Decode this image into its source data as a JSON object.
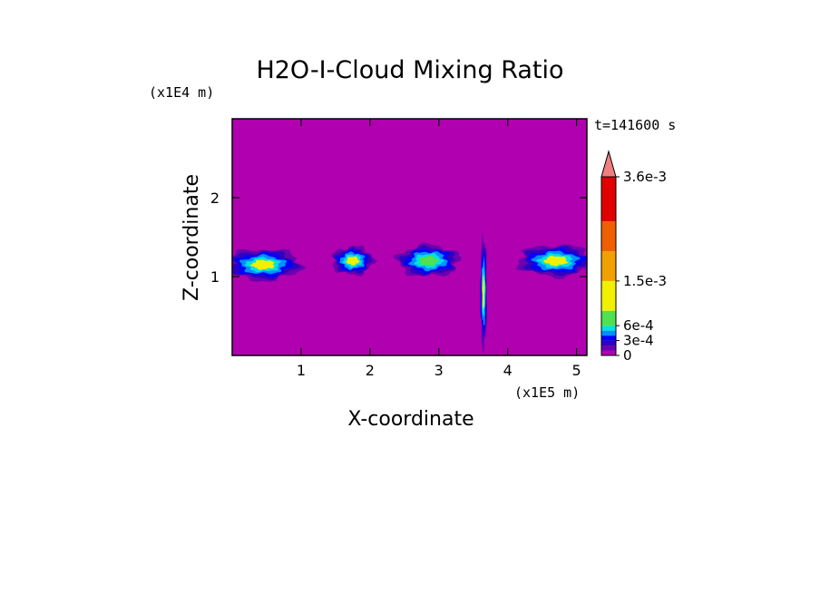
{
  "chart_data": {
    "type": "heatmap",
    "title": "H2O-I-Cloud Mixing Ratio",
    "xlabel": "X-coordinate",
    "ylabel": "Z-coordinate",
    "x_unit": "(x1E5 m)",
    "y_unit": "(x1E4 m)",
    "time_label": "t=141600 s",
    "xlim": [
      0,
      5.15
    ],
    "ylim": [
      0,
      3
    ],
    "x_ticks": [
      1,
      2,
      3,
      4,
      5
    ],
    "y_ticks": [
      1,
      2
    ],
    "background_value": 0,
    "background_color": "#b000b0",
    "colorbar": {
      "tick_labels": [
        "3.6e-3",
        "1.5e-3",
        "6e-4",
        "3e-4",
        "0"
      ],
      "tick_values": [
        0.0036,
        0.0015,
        0.0006,
        0.0003,
        0
      ],
      "levels": [
        0,
        0.0001,
        0.0002,
        0.0003,
        0.0004,
        0.0005,
        0.0006,
        0.0009,
        0.0015,
        0.0021,
        0.0027,
        0.0036
      ],
      "colors": [
        "#b000b0",
        "#6a00b0",
        "#3000c0",
        "#0000ff",
        "#0090ff",
        "#00e0e0",
        "#50e050",
        "#f0f000",
        "#f0a000",
        "#f06000",
        "#e00000",
        "#f08080"
      ],
      "extend": "max"
    },
    "cloud_regions": [
      {
        "x_center": 0.45,
        "z_center": 1.15,
        "x_halfwidth": 0.55,
        "z_halfwidth": 0.2,
        "peak": 0.0012
      },
      {
        "x_center": 1.75,
        "z_center": 1.2,
        "x_halfwidth": 0.3,
        "z_halfwidth": 0.18,
        "peak": 0.0009
      },
      {
        "x_center": 2.85,
        "z_center": 1.2,
        "x_halfwidth": 0.45,
        "z_halfwidth": 0.2,
        "peak": 0.0008
      },
      {
        "x_center": 3.65,
        "z_center": 0.8,
        "x_halfwidth": 0.05,
        "z_halfwidth": 0.7,
        "peak": 0.0011
      },
      {
        "x_center": 4.7,
        "z_center": 1.2,
        "x_halfwidth": 0.55,
        "z_halfwidth": 0.2,
        "peak": 0.0012
      }
    ]
  }
}
